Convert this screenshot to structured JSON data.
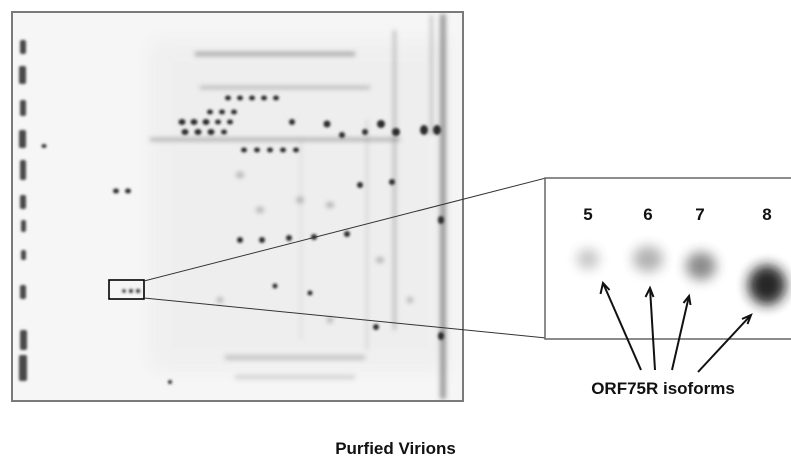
{
  "figure": {
    "caption": "Purfied Virions",
    "annotation_label": "ORF75R isoforms",
    "inset_spot_labels": [
      "5",
      "6",
      "7",
      "8"
    ],
    "colors": {
      "gel_border": "#7a7a7a",
      "spot": "#2a2a2a",
      "text": "#111111"
    }
  }
}
